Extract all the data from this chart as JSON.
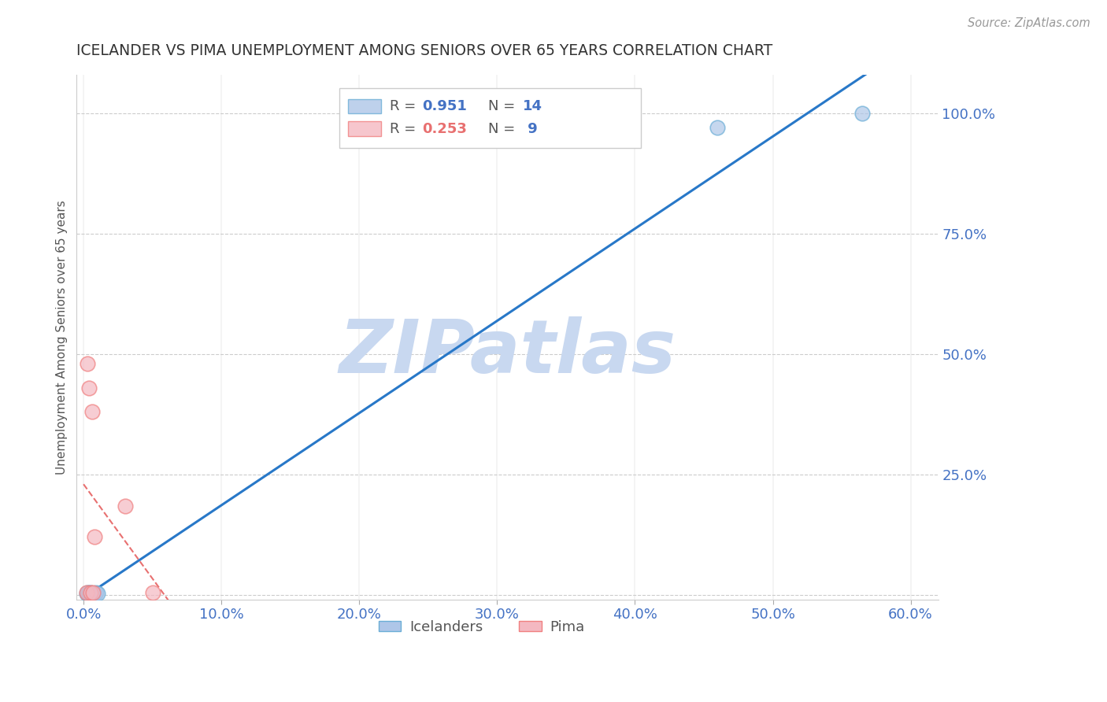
{
  "title": "ICELANDER VS PIMA UNEMPLOYMENT AMONG SENIORS OVER 65 YEARS CORRELATION CHART",
  "source": "Source: ZipAtlas.com",
  "ylabel": "Unemployment Among Seniors over 65 years",
  "watermark": "ZIPatlas",
  "xlim": [
    -0.005,
    0.62
  ],
  "ylim": [
    -0.01,
    1.08
  ],
  "xticks": [
    0.0,
    0.1,
    0.2,
    0.3,
    0.4,
    0.5,
    0.6
  ],
  "yticks": [
    0.0,
    0.25,
    0.5,
    0.75,
    1.0
  ],
  "ytick_labels": [
    "",
    "25.0%",
    "50.0%",
    "75.0%",
    "100.0%"
  ],
  "xtick_labels": [
    "0.0%",
    "10.0%",
    "20.0%",
    "30.0%",
    "40.0%",
    "50.0%",
    "60.0%"
  ],
  "icelanders_x": [
    0.002,
    0.003,
    0.003,
    0.004,
    0.004,
    0.005,
    0.005,
    0.006,
    0.007,
    0.008,
    0.009,
    0.01,
    0.46,
    0.565
  ],
  "icelanders_y": [
    0.003,
    0.002,
    0.004,
    0.003,
    0.005,
    0.003,
    0.004,
    0.003,
    0.003,
    0.003,
    0.004,
    0.003,
    0.97,
    1.0
  ],
  "pima_x": [
    0.002,
    0.003,
    0.004,
    0.005,
    0.006,
    0.007,
    0.008,
    0.03,
    0.05
  ],
  "pima_y": [
    0.005,
    0.48,
    0.43,
    0.005,
    0.38,
    0.005,
    0.12,
    0.185,
    0.005
  ],
  "icelanders_color": "#aec6e8",
  "pima_color": "#f4b8c1",
  "icelanders_edge_color": "#6baed6",
  "pima_edge_color": "#f08080",
  "icelanders_R": 0.951,
  "icelanders_N": 14,
  "pima_R": 0.253,
  "pima_N": 9,
  "blue_line_color": "#2878c8",
  "pink_line_color": "#e87070",
  "title_color": "#333333",
  "axis_label_color": "#555555",
  "tick_color": "#4472c4",
  "grid_color": "#cccccc",
  "watermark_color": "#c8d8f0",
  "source_color": "#999999",
  "background_color": "#ffffff",
  "legend_r1_color": "#4472c4",
  "legend_r2_color": "#e87070"
}
